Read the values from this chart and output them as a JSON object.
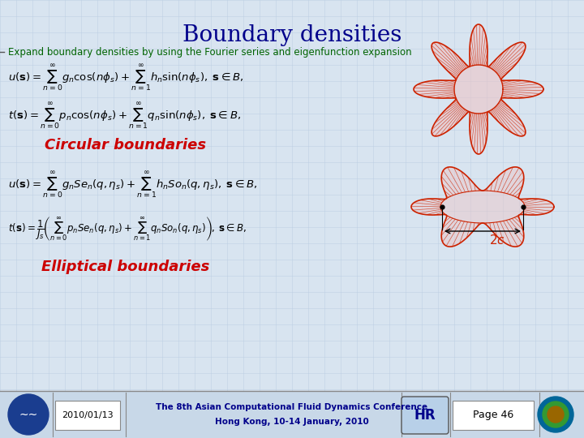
{
  "title": "Boundary densities",
  "title_color": "#00008B",
  "subtitle": "Expand boundary densities by using the Fourier series and eigenfunction expansion",
  "subtitle_color": "#006400",
  "bg_color": "#d8e4f0",
  "grid_color": "#b8cce0",
  "label1": "Circular boundaries",
  "label1_color": "#CC0000",
  "label2": "Elliptical boundaries",
  "label2_color": "#CC0000",
  "footer_date": "2010/01/13",
  "footer_conf1": "The 8th Asian Computational Fluid Dynamics Conference",
  "footer_conf2": "Hong Kong, 10-14 January, 2010",
  "footer_page": "Page 46",
  "footer_text_color": "#00008B",
  "eq_color": "#000000",
  "red": "#CC2200"
}
